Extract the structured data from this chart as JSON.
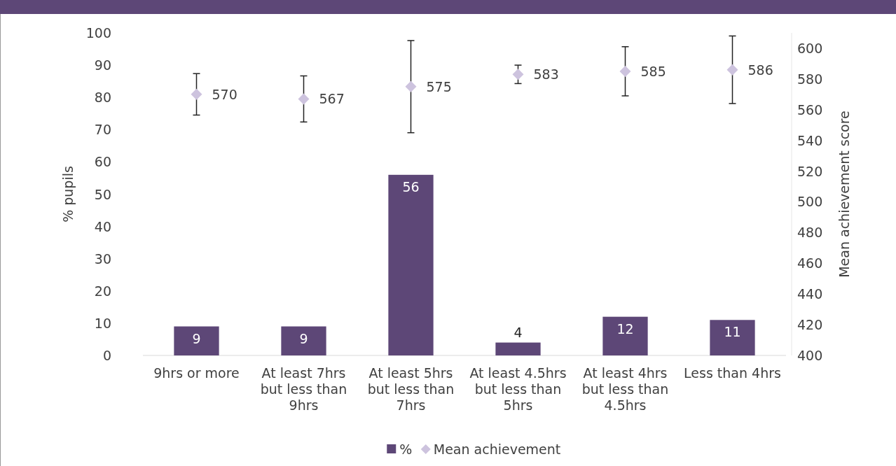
{
  "chart_data": {
    "type": "bar",
    "categories": [
      "9hrs or more",
      "At least 7hrs but less than 9hrs",
      "At least 5hrs but less than 7hrs",
      "At least 4.5hrs but less than 5hrs",
      "At least 4hrs but less than 4.5hrs",
      "Less than 4hrs"
    ],
    "series": [
      {
        "name": "%",
        "color": "#5d4777",
        "values": [
          9,
          9,
          56,
          4,
          12,
          11
        ]
      },
      {
        "name": "Mean achievement",
        "type": "scatter",
        "axis": "y2",
        "color": "#cdc3de",
        "values": [
          570,
          567,
          575,
          583,
          585,
          586
        ],
        "errors": [
          13.5,
          15,
          30,
          6,
          16,
          22
        ]
      }
    ],
    "ylabel": "% pupils",
    "y2label": "Mean achievement score",
    "ylim": [
      0,
      100
    ],
    "yticks": [
      0,
      10,
      20,
      30,
      40,
      50,
      60,
      70,
      80,
      90,
      100
    ],
    "y2lim": [
      400,
      610
    ],
    "y2ticks": [
      400,
      420,
      440,
      460,
      480,
      500,
      520,
      540,
      560,
      580,
      600
    ],
    "data_labels": true,
    "legend": "bottom",
    "marker": "diamond",
    "grid": false
  }
}
